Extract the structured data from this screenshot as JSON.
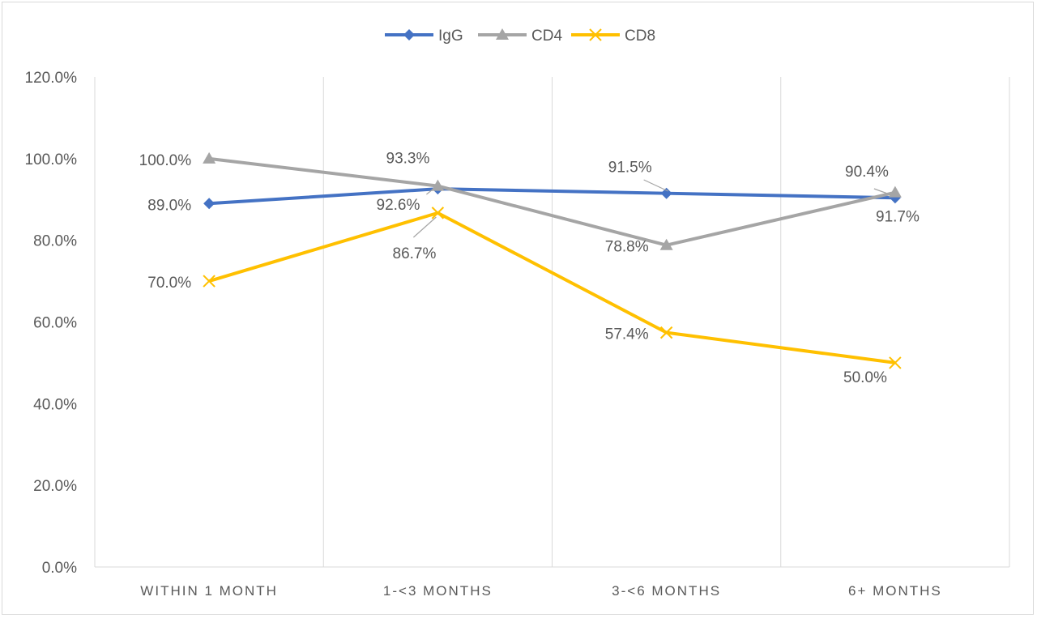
{
  "chart_data": {
    "type": "line",
    "title": "",
    "xlabel": "",
    "ylabel": "",
    "categories": [
      "WITHIN 1 MONTH",
      "1-<3  MONTHS",
      "3-<6  MONTHS",
      "6+ MONTHS"
    ],
    "ylim": [
      0,
      1.2
    ],
    "yticks": [
      "0.0%",
      "20.0%",
      "40.0%",
      "60.0%",
      "80.0%",
      "100.0%",
      "120.0%"
    ],
    "grid": "vertical",
    "legend": "top-center",
    "series": [
      {
        "name": "IgG",
        "color": "#4472C4",
        "marker": "diamond",
        "values": [
          0.89,
          0.926,
          0.915,
          0.904
        ],
        "labels": [
          "89.0%",
          "92.6%",
          "91.5%",
          "90.4%"
        ]
      },
      {
        "name": "CD4",
        "color": "#A5A5A5",
        "marker": "triangle",
        "values": [
          1.0,
          0.933,
          0.788,
          0.917
        ],
        "labels": [
          "100.0%",
          "93.3%",
          "78.8%",
          "91.7%"
        ]
      },
      {
        "name": "CD8",
        "color": "#FFC000",
        "marker": "x",
        "values": [
          0.7,
          0.867,
          0.574,
          0.5
        ],
        "labels": [
          "70.0%",
          "86.7%",
          "57.4%",
          "50.0%"
        ]
      }
    ]
  }
}
